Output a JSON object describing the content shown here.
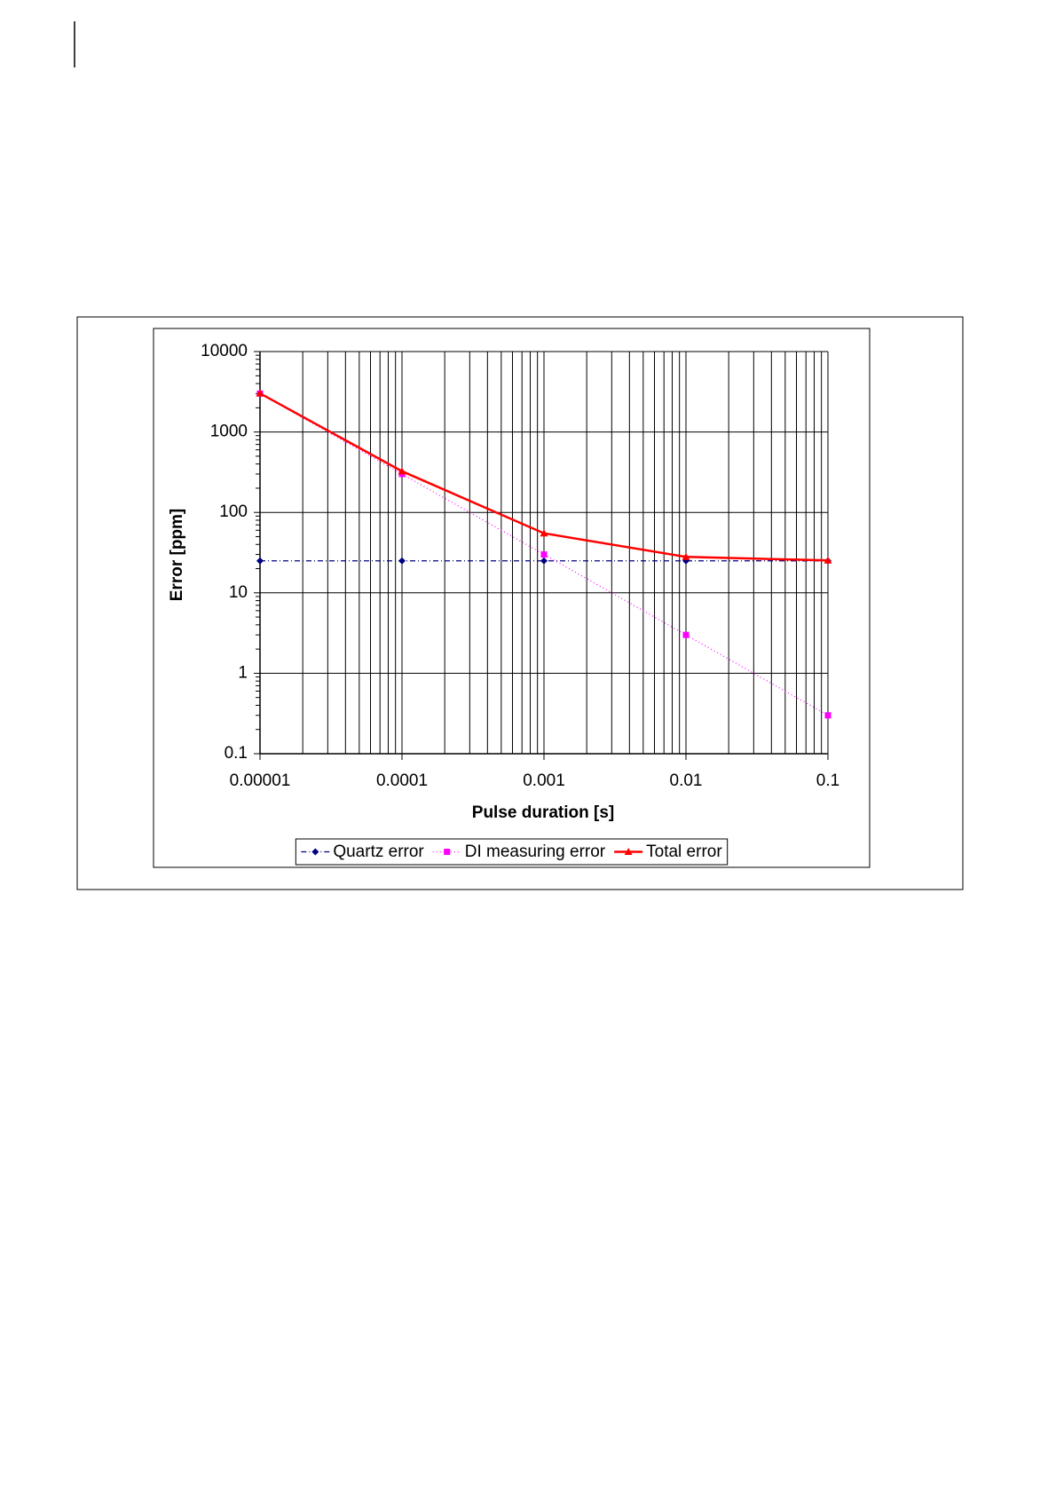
{
  "chart_data": {
    "type": "line",
    "x_label": "Pulse duration [s]",
    "y_label": "Error [ppm]",
    "x": [
      1e-05,
      0.0001,
      0.001,
      0.01,
      0.1
    ],
    "series": [
      {
        "name": "Quartz error",
        "color": "#000080",
        "marker": "diamond",
        "line": "dashdot",
        "values": [
          25,
          25,
          25,
          25,
          25
        ]
      },
      {
        "name": "DI measuring error",
        "color": "#ff00ff",
        "marker": "square",
        "line": "dotted",
        "values": [
          3000,
          300,
          30,
          3,
          0.3
        ]
      },
      {
        "name": "Total error",
        "color": "#ff0000",
        "marker": "triangle",
        "line": "solid",
        "values": [
          3025,
          325,
          55,
          28,
          25.3
        ]
      }
    ],
    "xlim": [
      1e-05,
      0.1
    ],
    "xticks": [
      1e-05,
      0.0001,
      0.001,
      0.01,
      0.1
    ],
    "ylim": [
      0.1,
      10000
    ],
    "yticks": [
      0.1,
      1,
      10,
      100,
      1000,
      10000
    ],
    "xscale": "log",
    "yscale": "log",
    "grid": true,
    "legend": "bottom"
  }
}
